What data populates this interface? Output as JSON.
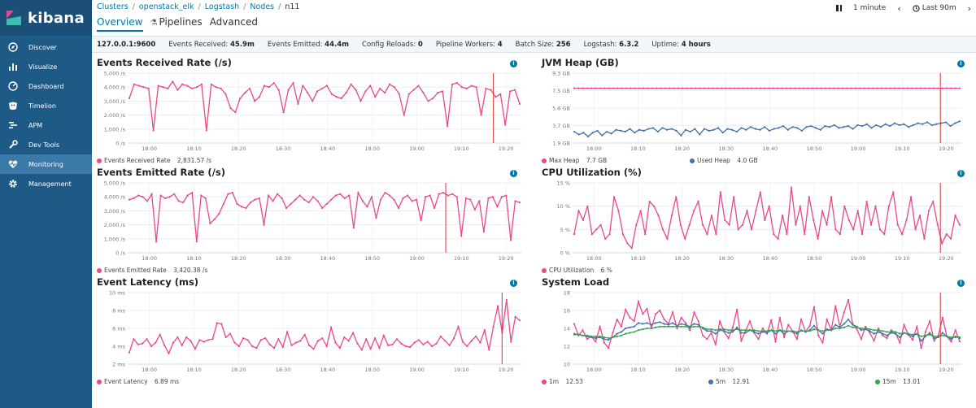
{
  "sidebar": {
    "logo": "kibana",
    "items": [
      {
        "label": "Discover",
        "icon": "compass-icon"
      },
      {
        "label": "Visualize",
        "icon": "bar-chart-icon"
      },
      {
        "label": "Dashboard",
        "icon": "dashboard-icon"
      },
      {
        "label": "Timelion",
        "icon": "timelion-icon"
      },
      {
        "label": "APM",
        "icon": "apm-icon"
      },
      {
        "label": "Dev Tools",
        "icon": "wrench-icon"
      },
      {
        "label": "Monitoring",
        "icon": "heartbeat-icon",
        "active": true
      },
      {
        "label": "Management",
        "icon": "gear-icon"
      }
    ]
  },
  "breadcrumb": [
    "Clusters",
    "openstack_elk",
    "Logstash",
    "Nodes",
    "n11"
  ],
  "tabs": [
    {
      "label": "Overview",
      "active": true
    },
    {
      "label": "Pipelines",
      "icon": "flask-icon"
    },
    {
      "label": "Advanced"
    }
  ],
  "time": {
    "pause_icon": "pause-icon",
    "interval": "1 minute",
    "range": "Last 90m"
  },
  "status": {
    "host": "127.0.0.1:9600",
    "events_received_label": "Events Received:",
    "events_received": "45.9m",
    "events_emitted_label": "Events Emitted:",
    "events_emitted": "44.4m",
    "config_reloads_label": "Config Reloads:",
    "config_reloads": "0",
    "pipeline_workers_label": "Pipeline Workers:",
    "pipeline_workers": "4",
    "batch_size_label": "Batch Size:",
    "batch_size": "256",
    "logstash_label": "Logstash:",
    "logstash": "6.3.2",
    "uptime_label": "Uptime:",
    "uptime": "4 hours"
  },
  "colors": {
    "pink": "#e8488b",
    "blue": "#3f6fae",
    "green": "#32a44f",
    "marker": "#d6322f",
    "accent": "#0079a5"
  },
  "chart_data": [
    {
      "type": "line",
      "title": "Events Received Rate (/s)",
      "ylim": [
        0,
        5000
      ],
      "yticks": [
        "0 /s",
        "1,000 /s",
        "2,000 /s",
        "3,000 /s",
        "4,000 /s",
        "5,000 /s"
      ],
      "xticks": [
        "18:00",
        "18:10",
        "18:20",
        "18:30",
        "18:40",
        "18:50",
        "19:00",
        "19:10",
        "19:20"
      ],
      "marker_at": 0.929,
      "series": [
        {
          "name": "Events Received Rate",
          "legend_value": "2,831.57 /s",
          "color": "#e8488b",
          "values": [
            3200,
            4200,
            4100,
            4000,
            3900,
            900,
            4100,
            4000,
            3900,
            4400,
            3800,
            4200,
            4100,
            3900,
            4000,
            4200,
            900,
            4200,
            4000,
            3900,
            3500,
            2500,
            2200,
            3200,
            3600,
            3900,
            3000,
            3300,
            4100,
            4000,
            4300,
            3800,
            2200,
            3800,
            4300,
            2800,
            4100,
            3600,
            3000,
            3700,
            3900,
            4100,
            3500,
            3300,
            3200,
            3600,
            4200,
            3800,
            3000,
            3700,
            4100,
            3300,
            3900,
            3600,
            4200,
            4000,
            3500,
            2000,
            3500,
            3800,
            4100,
            3600,
            3000,
            3200,
            3600,
            3700,
            1200,
            4200,
            4300,
            4000,
            3900,
            4100,
            4000,
            2000,
            3900,
            3800,
            3300,
            3500,
            1300,
            3700,
            3800,
            2800
          ]
        }
      ]
    },
    {
      "type": "line",
      "title": "JVM Heap (GB)",
      "ylim": [
        1.9,
        9.3
      ],
      "yticks": [
        "1.9 GB",
        "3.7 GB",
        "5.6 GB",
        "7.5 GB",
        "9.3 GB"
      ],
      "xticks": [
        "18:00",
        "18:10",
        "18:20",
        "18:30",
        "18:40",
        "18:50",
        "19:00",
        "19:10",
        "19:20"
      ],
      "marker_at": 0.946,
      "series": [
        {
          "name": "Max Heap",
          "legend_value": "7.7 GB",
          "color": "#e8488b",
          "values": "flat:7.7"
        },
        {
          "name": "Used Heap",
          "legend_value": "4.0 GB",
          "color": "#3f6fae",
          "values": [
            3.1,
            2.8,
            3.0,
            2.6,
            3.0,
            3.2,
            2.7,
            3.1,
            2.9,
            3.3,
            3.2,
            3.1,
            3.4,
            3.0,
            3.3,
            3.2,
            3.4,
            3.5,
            3.1,
            3.5,
            3.3,
            3.4,
            3.2,
            2.7,
            3.3,
            3.1,
            3.4,
            2.8,
            3.4,
            3.2,
            3.3,
            3.5,
            3.0,
            3.4,
            3.3,
            3.1,
            3.5,
            3.3,
            3.6,
            3.4,
            3.3,
            3.6,
            3.2,
            3.4,
            3.5,
            3.7,
            3.3,
            3.6,
            3.5,
            3.2,
            3.6,
            3.7,
            3.5,
            3.3,
            3.7,
            3.6,
            3.8,
            3.5,
            3.6,
            3.7,
            3.4,
            3.8,
            3.7,
            3.9,
            3.5,
            3.8,
            3.6,
            3.9,
            3.7,
            4.0,
            3.8,
            3.9,
            3.6,
            3.8,
            4.0,
            3.9,
            4.1,
            3.8,
            3.9,
            4.0,
            4.1,
            3.7,
            4.0,
            4.2
          ]
        }
      ]
    },
    {
      "type": "line",
      "title": "Events Emitted Rate (/s)",
      "ylim": [
        0,
        5000
      ],
      "yticks": [
        "0 /s",
        "1,000 /s",
        "2,000 /s",
        "3,000 /s",
        "4,000 /s",
        "5,000 /s"
      ],
      "xticks": [
        "18:00",
        "18:10",
        "18:20",
        "18:30",
        "18:40",
        "18:50",
        "19:00",
        "19:10",
        "19:20"
      ],
      "marker_at": 0.808,
      "series": [
        {
          "name": "Events Emitted Rate",
          "legend_value": "3,420.38 /s",
          "color": "#e8488b",
          "values": [
            3800,
            3900,
            4100,
            4000,
            3700,
            4200,
            800,
            4100,
            3900,
            4000,
            4200,
            3700,
            3600,
            4100,
            4300,
            800,
            4100,
            3900,
            2100,
            2400,
            2800,
            3500,
            4200,
            4300,
            3500,
            3300,
            3200,
            3600,
            3800,
            3900,
            2000,
            4100,
            3700,
            4200,
            3900,
            3200,
            3500,
            3800,
            4100,
            3800,
            3600,
            4000,
            3700,
            3200,
            3500,
            3800,
            4100,
            4200,
            3900,
            4100,
            1800,
            4300,
            3700,
            3300,
            4000,
            2500,
            3800,
            4300,
            4100,
            3800,
            3200,
            3900,
            4100,
            3700,
            3800,
            2300,
            4000,
            4100,
            3200,
            4200,
            4300,
            4100,
            4200,
            4000,
            1200,
            3900,
            3800,
            3100,
            3700,
            1500,
            3900,
            4000,
            3300,
            4000,
            4100,
            900,
            3700,
            3600
          ]
        }
      ]
    },
    {
      "type": "line",
      "title": "CPU Utilization (%)",
      "ylim": [
        0,
        15
      ],
      "yticks": [
        "0 %",
        "5 %",
        "10 %",
        "15 %"
      ],
      "xticks": [
        "18:00",
        "18:10",
        "18:20",
        "18:30",
        "18:40",
        "18:50",
        "19:00",
        "19:10",
        "19:20"
      ],
      "marker_at": 0.946,
      "series": [
        {
          "name": "CPU Utilization",
          "legend_value": "6 %",
          "color": "#e8488b",
          "values": [
            4,
            9,
            7,
            10,
            4,
            5,
            6,
            3,
            4,
            12,
            9,
            4,
            2,
            1,
            6,
            9,
            4,
            11,
            10,
            8,
            5,
            3,
            8,
            12,
            6,
            3,
            6,
            9,
            11,
            6,
            4,
            8,
            4,
            13,
            7,
            6,
            12,
            5,
            6,
            9,
            5,
            9,
            13,
            7,
            10,
            4,
            3,
            8,
            4,
            14,
            6,
            10,
            4,
            12,
            7,
            3,
            9,
            6,
            12,
            5,
            4,
            10,
            7,
            5,
            9,
            4,
            11,
            6,
            10,
            5,
            4,
            10,
            13,
            6,
            4,
            7,
            12,
            5,
            8,
            3,
            9,
            11,
            6,
            2,
            4,
            3,
            8,
            6
          ]
        }
      ]
    },
    {
      "type": "line",
      "title": "Event Latency (ms)",
      "ylim": [
        2,
        10
      ],
      "yticks": [
        "2 ms",
        "4 ms",
        "6 ms",
        "8 ms",
        "10 ms"
      ],
      "xticks": [
        "18:00",
        "18:10",
        "18:20",
        "18:30",
        "18:40",
        "18:50",
        "19:00",
        "19:10",
        "19:20"
      ],
      "marker_at": 0.951,
      "series": [
        {
          "name": "Event Latency",
          "legend_value": "6.89 ms",
          "color": "#e8488b",
          "values": [
            3.3,
            4.8,
            4.2,
            4.3,
            4.8,
            4.0,
            4.4,
            5.3,
            4.1,
            3.2,
            4.4,
            5.0,
            4.1,
            5.0,
            4.6,
            3.7,
            4.7,
            4.5,
            4.7,
            4.8,
            6.6,
            6.5,
            5.0,
            5.4,
            4.4,
            4.0,
            4.9,
            4.7,
            4.0,
            3.8,
            4.7,
            4.9,
            4.2,
            3.8,
            4.8,
            3.9,
            5.6,
            4.1,
            4.4,
            4.6,
            5.3,
            4.1,
            3.7,
            4.6,
            4.9,
            4.0,
            6.1,
            4.4,
            3.8,
            5.0,
            4.6,
            5.5,
            4.3,
            3.6,
            4.8,
            3.7,
            4.9,
            3.8,
            5.2,
            4.1,
            4.2,
            4.8,
            4.3,
            4.0,
            3.9,
            4.4,
            4.7,
            4.2,
            4.5,
            4.0,
            4.3,
            5.1,
            4.6,
            4.1,
            4.9,
            6.2,
            4.5,
            4.0,
            4.6,
            5.1,
            4.4,
            5.8,
            3.6,
            6.2,
            8.5,
            5.5,
            9.2,
            4.5,
            7.3,
            6.9
          ]
        }
      ]
    },
    {
      "type": "line",
      "title": "System Load",
      "ylim": [
        10,
        18
      ],
      "yticks": [
        "10",
        "12",
        "14",
        "16",
        "18"
      ],
      "xticks": [
        "18:00",
        "18:10",
        "18:20",
        "18:30",
        "18:40",
        "18:50",
        "19:00",
        "19:10",
        "19:20"
      ],
      "marker_at": 0.946,
      "series": [
        {
          "name": "1m",
          "legend_value": "12.53",
          "color": "#e8488b",
          "values": [
            14.5,
            13.2,
            13.8,
            12.8,
            13.1,
            12.5,
            14.2,
            12.4,
            11.8,
            13.5,
            15.0,
            14.2,
            16.1,
            15.2,
            14.8,
            17.0,
            15.6,
            16.2,
            14.0,
            15.6,
            16.0,
            15.0,
            14.5,
            15.8,
            14.0,
            15.2,
            14.6,
            13.8,
            15.8,
            14.8,
            13.2,
            12.8,
            13.5,
            12.2,
            14.8,
            13.6,
            12.9,
            14.1,
            16.1,
            12.6,
            13.7,
            14.8,
            13.5,
            12.8,
            14.0,
            13.4,
            14.9,
            12.5,
            15.2,
            13.0,
            14.4,
            13.7,
            12.8,
            15.0,
            13.6,
            14.3,
            16.4,
            13.2,
            12.4,
            15.0,
            13.8,
            16.5,
            14.2,
            15.8,
            17.2,
            14.5,
            13.9,
            12.8,
            14.2,
            13.5,
            12.6,
            14.0,
            13.2,
            12.9,
            13.8,
            13.5,
            12.4,
            14.4,
            13.3,
            12.7,
            14.2,
            11.8,
            13.6,
            14.8,
            12.6,
            13.2,
            15.2,
            13.1,
            12.5,
            13.8,
            12.53
          ]
        },
        {
          "name": "5m",
          "legend_value": "12.91",
          "color": "#3f6fae",
          "values": [
            13.4,
            13.3,
            13.2,
            13.1,
            13.0,
            12.9,
            13.0,
            12.8,
            12.7,
            13.0,
            13.4,
            13.6,
            14.0,
            14.1,
            14.2,
            14.6,
            14.5,
            14.6,
            14.4,
            14.6,
            14.7,
            14.5,
            14.4,
            14.6,
            14.3,
            14.5,
            14.4,
            14.2,
            14.5,
            14.4,
            14.0,
            13.7,
            13.7,
            13.4,
            13.8,
            13.7,
            13.5,
            13.6,
            14.1,
            13.5,
            13.5,
            13.8,
            13.6,
            13.4,
            13.6,
            13.5,
            13.8,
            13.4,
            13.8,
            13.4,
            13.7,
            13.6,
            13.4,
            13.8,
            13.6,
            13.8,
            14.3,
            13.8,
            13.4,
            13.9,
            13.8,
            14.4,
            14.1,
            14.5,
            15.0,
            14.4,
            14.2,
            13.8,
            13.9,
            13.7,
            13.4,
            13.6,
            13.4,
            13.2,
            13.5,
            13.4,
            13.0,
            13.5,
            13.3,
            13.1,
            13.4,
            12.6,
            13.1,
            13.5,
            12.9,
            13.0,
            13.5,
            13.1,
            12.8,
            13.1,
            12.91
          ]
        },
        {
          "name": "15m",
          "legend_value": "13.01",
          "color": "#32a44f",
          "values": [
            13.3,
            13.3,
            13.2,
            13.2,
            13.1,
            13.1,
            13.1,
            13.0,
            12.9,
            13.0,
            13.1,
            13.2,
            13.4,
            13.5,
            13.6,
            13.8,
            13.9,
            14.0,
            14.0,
            14.1,
            14.2,
            14.2,
            14.2,
            14.2,
            14.2,
            14.2,
            14.2,
            14.1,
            14.2,
            14.2,
            14.1,
            13.9,
            13.9,
            13.8,
            13.9,
            13.9,
            13.8,
            13.8,
            13.9,
            13.8,
            13.8,
            13.8,
            13.8,
            13.7,
            13.7,
            13.7,
            13.8,
            13.7,
            13.8,
            13.7,
            13.7,
            13.7,
            13.6,
            13.7,
            13.7,
            13.7,
            13.9,
            13.8,
            13.7,
            13.8,
            13.8,
            14.0,
            14.0,
            14.1,
            14.3,
            14.1,
            14.1,
            14.0,
            14.0,
            13.9,
            13.8,
            13.8,
            13.7,
            13.6,
            13.6,
            13.6,
            13.4,
            13.5,
            13.4,
            13.3,
            13.4,
            13.1,
            13.2,
            13.3,
            13.1,
            13.1,
            13.2,
            13.1,
            13.0,
            13.0,
            13.01
          ]
        }
      ]
    }
  ]
}
